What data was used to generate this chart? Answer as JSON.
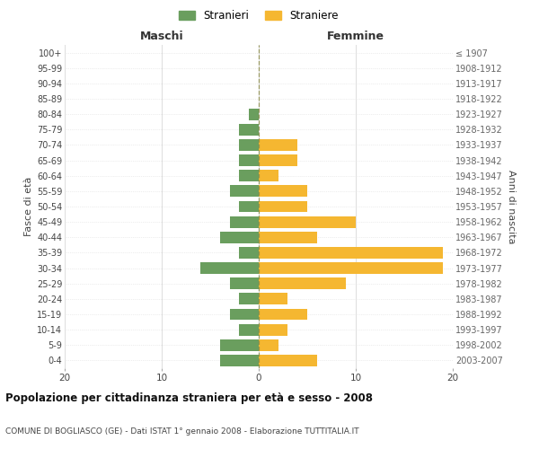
{
  "age_groups": [
    "0-4",
    "5-9",
    "10-14",
    "15-19",
    "20-24",
    "25-29",
    "30-34",
    "35-39",
    "40-44",
    "45-49",
    "50-54",
    "55-59",
    "60-64",
    "65-69",
    "70-74",
    "75-79",
    "80-84",
    "85-89",
    "90-94",
    "95-99",
    "100+"
  ],
  "birth_years": [
    "2003-2007",
    "1998-2002",
    "1993-1997",
    "1988-1992",
    "1983-1987",
    "1978-1982",
    "1973-1977",
    "1968-1972",
    "1963-1967",
    "1958-1962",
    "1953-1957",
    "1948-1952",
    "1943-1947",
    "1938-1942",
    "1933-1937",
    "1928-1932",
    "1923-1927",
    "1918-1922",
    "1913-1917",
    "1908-1912",
    "≤ 1907"
  ],
  "stranieri": [
    4,
    4,
    2,
    3,
    2,
    3,
    6,
    2,
    4,
    3,
    2,
    3,
    2,
    2,
    2,
    2,
    1,
    0,
    0,
    0,
    0
  ],
  "straniere": [
    6,
    2,
    3,
    5,
    3,
    9,
    19,
    19,
    6,
    10,
    5,
    5,
    2,
    4,
    4,
    0,
    0,
    0,
    0,
    0,
    0
  ],
  "color_stranieri": "#6a9e5e",
  "color_straniere": "#f5b731",
  "title": "Popolazione per cittadinanza straniera per età e sesso - 2008",
  "subtitle": "COMUNE DI BOGLIASCO (GE) - Dati ISTAT 1° gennaio 2008 - Elaborazione TUTTITALIA.IT",
  "xlabel_left": "Maschi",
  "xlabel_right": "Femmine",
  "ylabel_left": "Fasce di età",
  "ylabel_right": "Anni di nascita",
  "xlim": 20,
  "legend_stranieri": "Stranieri",
  "legend_straniere": "Straniere",
  "background_color": "#ffffff",
  "grid_color": "#dddddd",
  "center_line_color": "#888844"
}
